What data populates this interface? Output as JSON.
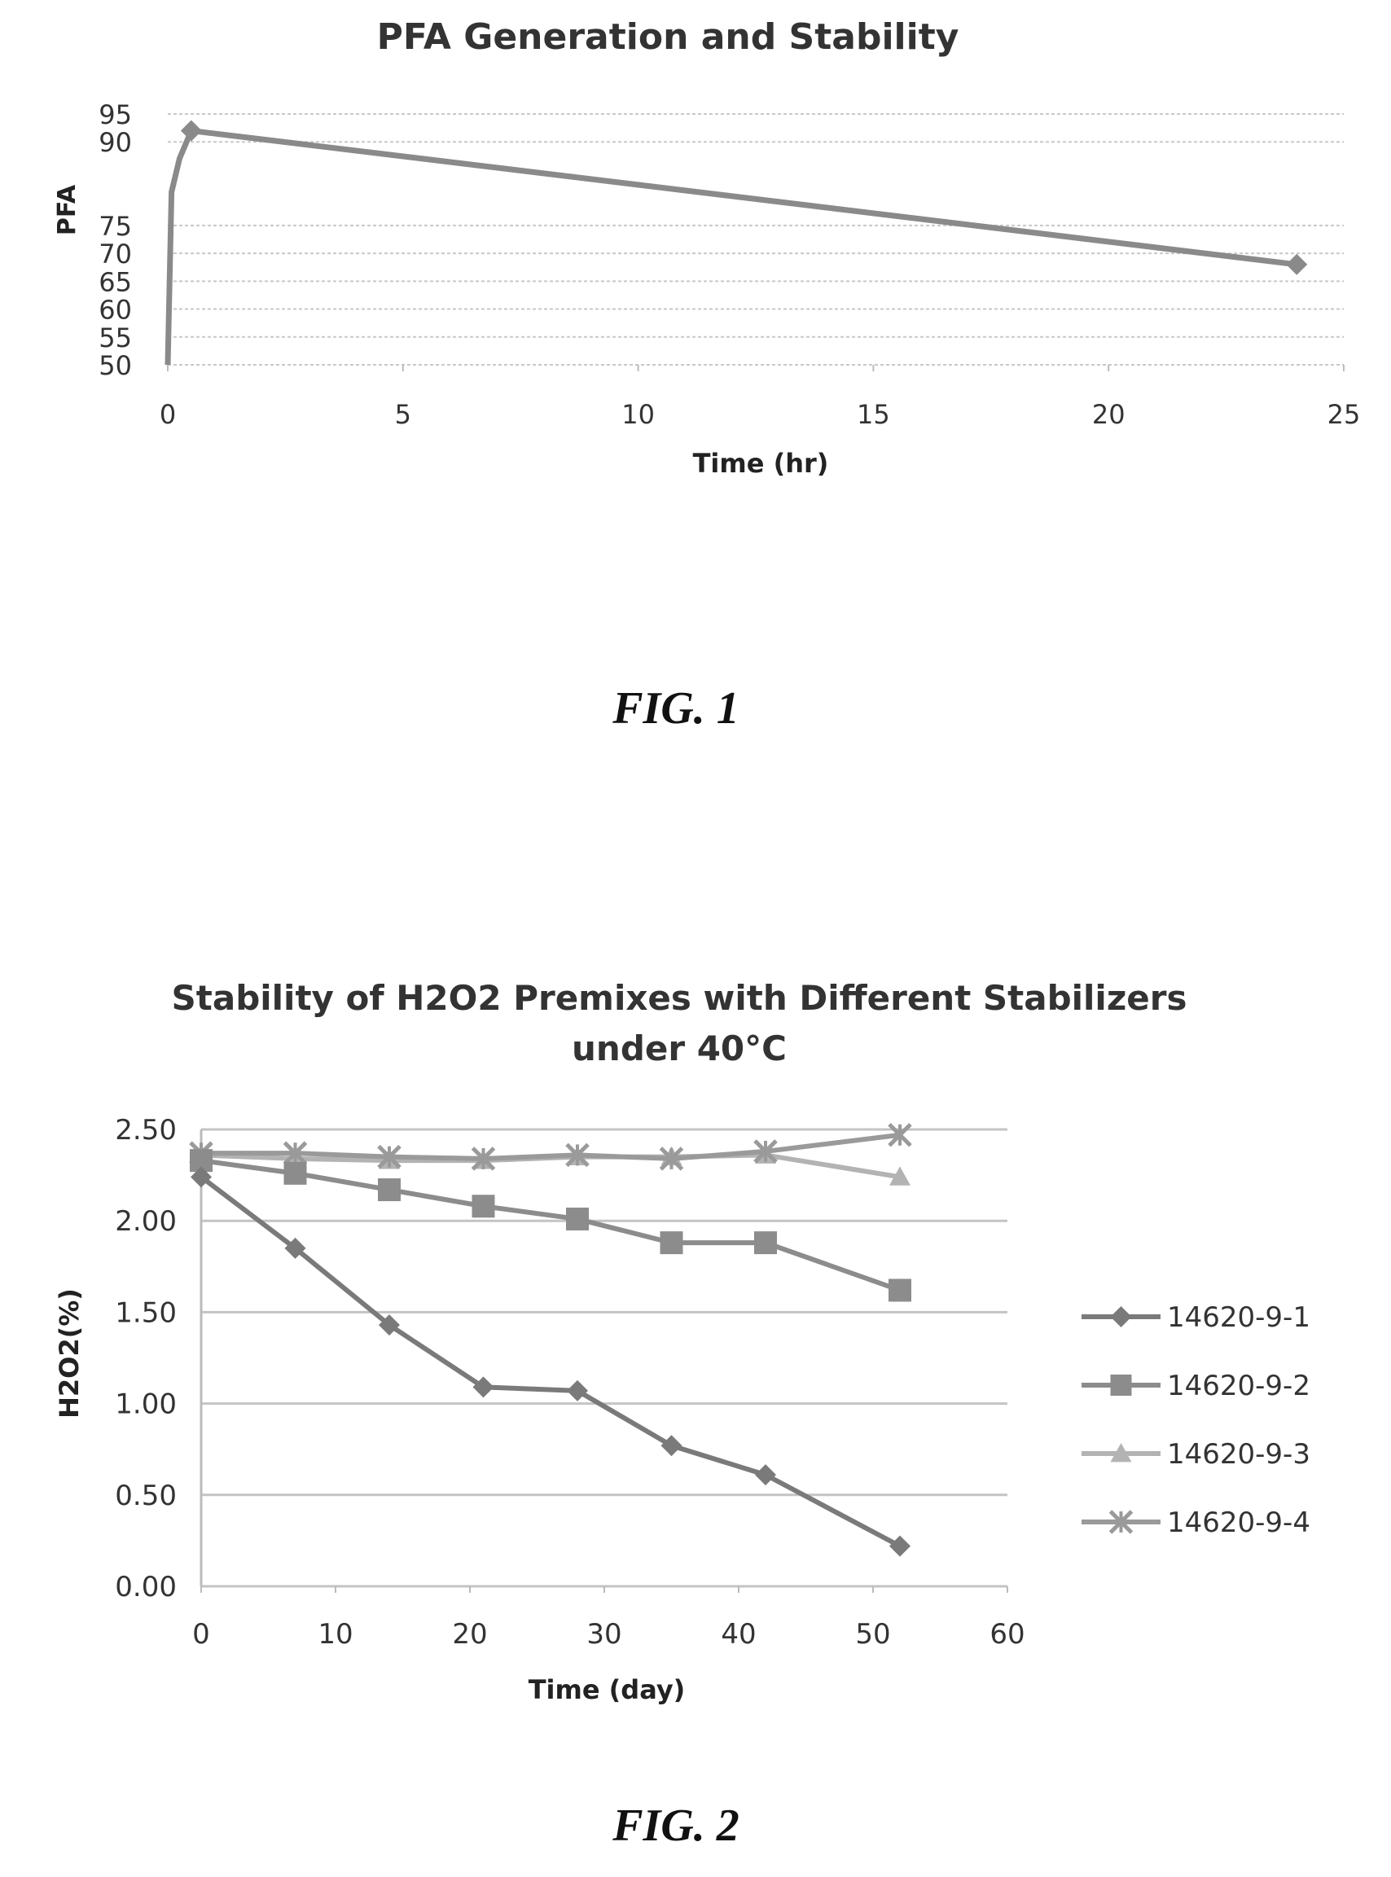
{
  "figures": [
    {
      "caption": "FIG. 1"
    },
    {
      "caption": "FIG. 2"
    }
  ],
  "chart_data": [
    {
      "type": "line",
      "title": "PFA Generation and Stability",
      "xlabel": "Time (hr)",
      "ylabel": "PFA",
      "xlim": [
        0,
        25
      ],
      "ylim": [
        50,
        95
      ],
      "x_ticks": [
        "0",
        "5",
        "10",
        "15",
        "20",
        "25"
      ],
      "y_ticks": [
        "50",
        "55",
        "60",
        "65",
        "70",
        "75",
        "90",
        "95"
      ],
      "grid": true,
      "series": [
        {
          "x": [
            0,
            0.08,
            0.25,
            0.5,
            24
          ],
          "y": [
            50,
            81,
            87,
            92,
            68
          ],
          "color": "#8a8a8a"
        }
      ]
    },
    {
      "type": "line",
      "title": "Stability of H2O2 Premixes with Different Stabilizers under 40°C",
      "title_lines": [
        "Stability of H2O2 Premixes with Different Stabilizers",
        "under 40°C"
      ],
      "xlabel": "Time (day)",
      "ylabel": "H2O2(%)",
      "xlim": [
        0,
        60
      ],
      "ylim": [
        0,
        2.5
      ],
      "x_ticks": [
        "0",
        "10",
        "20",
        "30",
        "40",
        "50",
        "60"
      ],
      "y_ticks": [
        "0.00",
        "0.50",
        "1.00",
        "1.50",
        "2.00",
        "2.50"
      ],
      "grid": true,
      "legend_position": "right",
      "x": [
        0,
        7,
        14,
        21,
        28,
        35,
        42,
        52
      ],
      "series": [
        {
          "name": "14620-9-1",
          "marker": "diamond",
          "color": "#7a7a7a",
          "values": [
            2.24,
            1.85,
            1.43,
            1.09,
            1.07,
            0.77,
            0.61,
            0.22
          ]
        },
        {
          "name": "14620-9-2",
          "marker": "square",
          "color": "#8c8c8c",
          "values": [
            2.33,
            2.26,
            2.17,
            2.08,
            2.01,
            1.88,
            1.88,
            1.62
          ]
        },
        {
          "name": "14620-9-3",
          "marker": "triangle",
          "color": "#b3b3b3",
          "values": [
            2.36,
            2.34,
            2.33,
            2.33,
            2.35,
            2.35,
            2.36,
            2.24
          ]
        },
        {
          "name": "14620-9-4",
          "marker": "x",
          "color": "#9a9a9a",
          "values": [
            2.37,
            2.37,
            2.35,
            2.34,
            2.36,
            2.34,
            2.38,
            2.47
          ]
        }
      ]
    }
  ]
}
